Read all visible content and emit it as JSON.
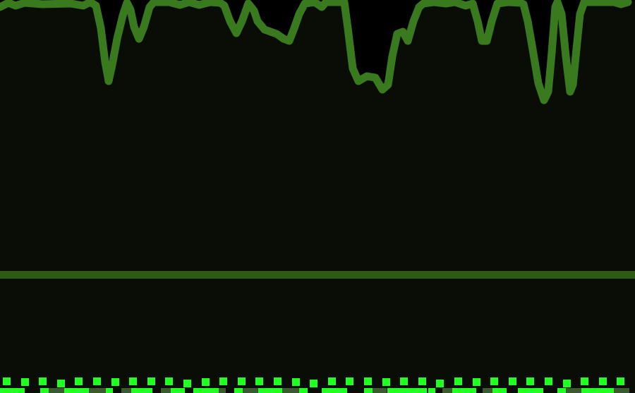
{
  "palette": {
    "background": "#0a0c06",
    "sky": "#000000",
    "terrain": "#3a7a1e",
    "ground_line": "#2f5a14",
    "dots": "#22ff22",
    "blocks_bright": "#22ff22",
    "blocks_dim": "#3c5a30"
  }
}
